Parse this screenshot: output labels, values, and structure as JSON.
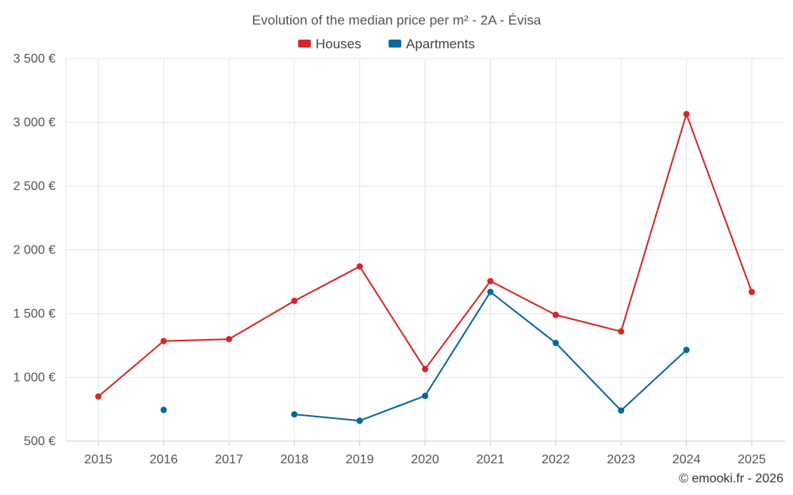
{
  "chart_data": {
    "type": "line",
    "title": "Evolution of the median price per m² - 2A - Évisa",
    "categories": [
      "2015",
      "2016",
      "2017",
      "2018",
      "2019",
      "2020",
      "2021",
      "2022",
      "2023",
      "2024",
      "2025"
    ],
    "series": [
      {
        "name": "Houses",
        "color": "#d62728",
        "values": [
          850,
          1285,
          1300,
          1600,
          1870,
          1065,
          1755,
          1490,
          1360,
          3065,
          1670
        ]
      },
      {
        "name": "Apartments",
        "color": "#08679d",
        "values": [
          null,
          745,
          null,
          710,
          660,
          855,
          1670,
          1270,
          740,
          1215,
          null
        ]
      }
    ],
    "ylim": [
      500,
      3500
    ],
    "yticks": [
      500,
      1000,
      1500,
      2000,
      2500,
      3000,
      3500
    ],
    "ytick_labels": [
      "500 €",
      "1 000 €",
      "1 500 €",
      "2 000 €",
      "2 500 €",
      "3 000 €",
      "3 500 €"
    ],
    "grid": true,
    "legend_position": "top-center",
    "xlabel": "",
    "ylabel": ""
  },
  "credit": "© emooki.fr - 2026"
}
